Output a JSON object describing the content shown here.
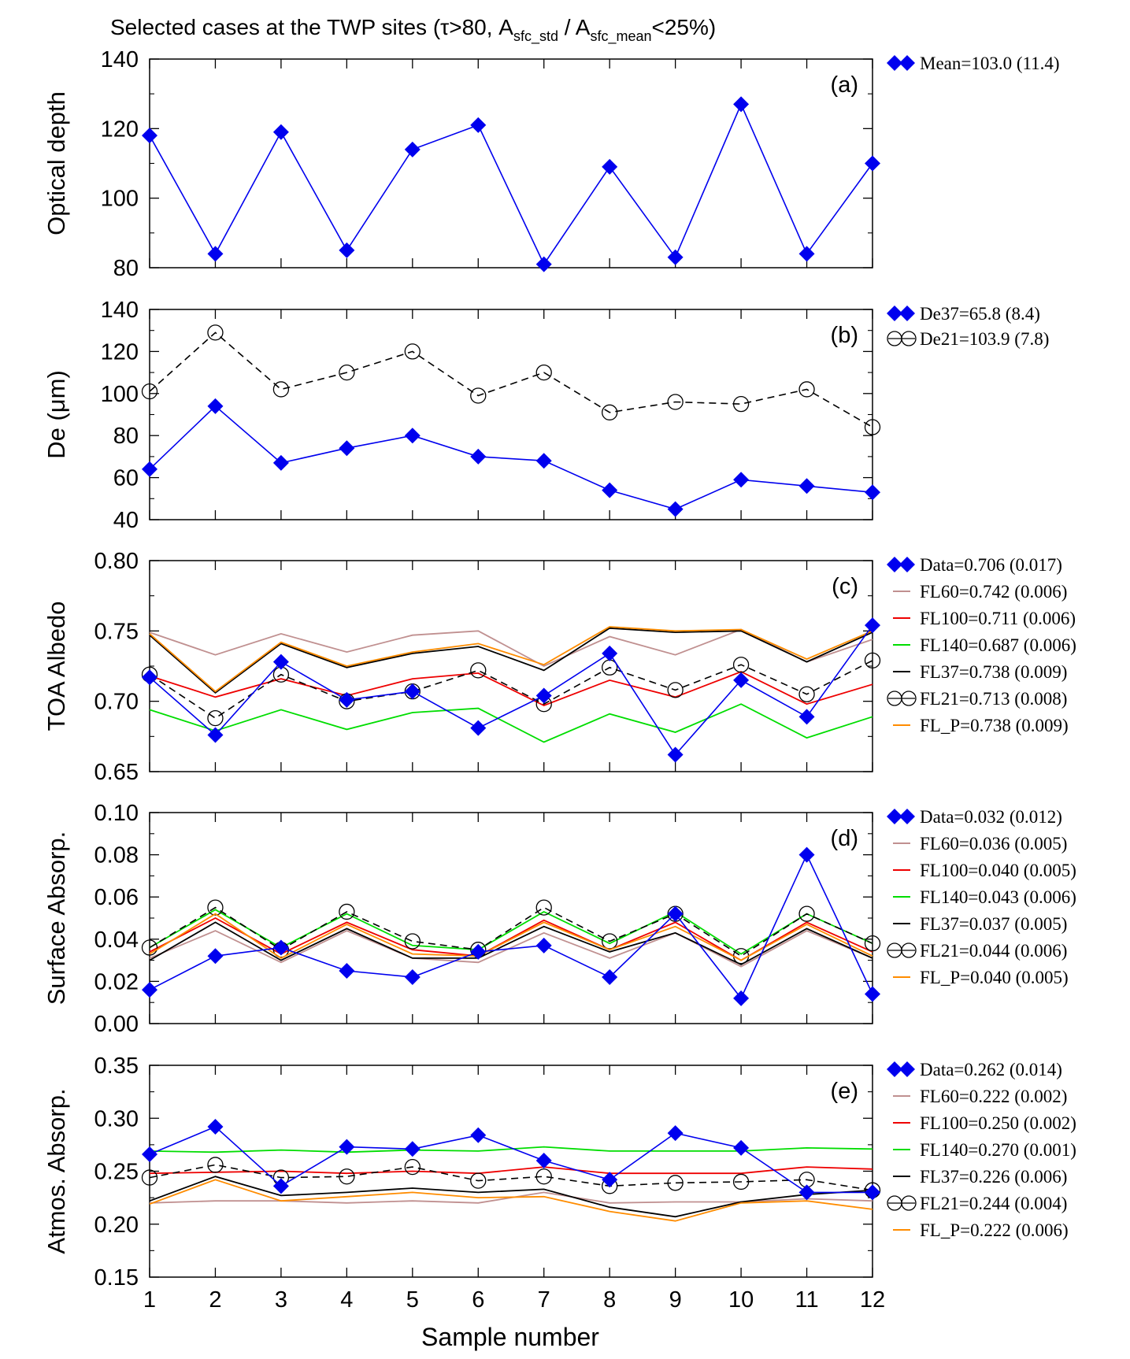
{
  "figure": {
    "title_parts": [
      "Selected cases at the TWP sites (τ>80, A",
      "sfc_std",
      " / A",
      "sfc_mean",
      "<25%)"
    ],
    "xlabel": "Sample number"
  },
  "colors": {
    "data": "#0000ee",
    "FL60": "#c09090",
    "FL100": "#ee0000",
    "FL140": "#00dd00",
    "FL37": "#000000",
    "FL21": "#000000",
    "FL_P": "#ff8c00"
  },
  "chart_data": [
    {
      "type": "line",
      "panel": "(a)",
      "ylabel": "Optical depth",
      "ylim": [
        80,
        140
      ],
      "yticks": [
        "80",
        "100",
        "120",
        "140"
      ],
      "x": [
        1,
        2,
        3,
        4,
        5,
        6,
        7,
        8,
        9,
        10,
        11,
        12
      ],
      "xtick_labels": [],
      "series": [
        {
          "name": "Mean=103.0 (11.4)",
          "style": "data",
          "values": [
            118,
            84,
            119,
            85,
            114,
            121,
            81,
            109,
            83,
            127,
            84,
            110
          ]
        }
      ]
    },
    {
      "type": "line",
      "panel": "(b)",
      "ylabel": "De (μm)",
      "ylim": [
        40,
        140
      ],
      "yticks": [
        "40",
        "60",
        "80",
        "100",
        "120",
        "140"
      ],
      "x": [
        1,
        2,
        3,
        4,
        5,
        6,
        7,
        8,
        9,
        10,
        11,
        12
      ],
      "xtick_labels": [],
      "series": [
        {
          "name": "De37=65.8 (8.4)",
          "style": "data",
          "values": [
            64,
            94,
            67,
            74,
            80,
            70,
            68,
            54,
            45,
            59,
            56,
            53
          ]
        },
        {
          "name": "De21=103.9 (7.8)",
          "style": "circle-dash",
          "values": [
            101,
            129,
            102,
            110,
            120,
            99,
            110,
            91,
            96,
            95,
            102,
            84
          ]
        }
      ]
    },
    {
      "type": "line",
      "panel": "(c)",
      "ylabel": "TOA Albedo",
      "ylim": [
        0.65,
        0.8
      ],
      "yticks": [
        "0.65",
        "0.70",
        "0.75",
        "0.80"
      ],
      "x": [
        1,
        2,
        3,
        4,
        5,
        6,
        7,
        8,
        9,
        10,
        11,
        12
      ],
      "xtick_labels": [],
      "series": [
        {
          "name": "Data=0.706 (0.017)",
          "style": "data",
          "values": [
            0.717,
            0.676,
            0.728,
            0.701,
            0.707,
            0.681,
            0.704,
            0.734,
            0.662,
            0.715,
            0.689,
            0.754
          ]
        },
        {
          "name": "FL60=0.742 (0.006)",
          "style": "FL60",
          "values": [
            0.749,
            0.733,
            0.748,
            0.735,
            0.747,
            0.75,
            0.725,
            0.746,
            0.733,
            0.751,
            0.728,
            0.744
          ]
        },
        {
          "name": "FL100=0.711 (0.006)",
          "style": "FL100",
          "values": [
            0.718,
            0.703,
            0.716,
            0.704,
            0.716,
            0.72,
            0.697,
            0.715,
            0.703,
            0.721,
            0.698,
            0.712
          ]
        },
        {
          "name": "FL140=0.687 (0.006)",
          "style": "FL140",
          "values": [
            0.694,
            0.679,
            0.694,
            0.68,
            0.692,
            0.695,
            0.671,
            0.691,
            0.678,
            0.698,
            0.674,
            0.689
          ]
        },
        {
          "name": "FL37=0.738 (0.009)",
          "style": "FL37",
          "values": [
            0.747,
            0.706,
            0.741,
            0.724,
            0.734,
            0.739,
            0.722,
            0.752,
            0.749,
            0.75,
            0.728,
            0.749
          ]
        },
        {
          "name": "FL21=0.713 (0.008)",
          "style": "FL21",
          "values": [
            0.719,
            0.688,
            0.719,
            0.7,
            0.707,
            0.722,
            0.698,
            0.724,
            0.708,
            0.726,
            0.705,
            0.729
          ]
        },
        {
          "name": "FL_P=0.738 (0.009)",
          "style": "FL_P",
          "values": [
            0.748,
            0.707,
            0.742,
            0.725,
            0.735,
            0.741,
            0.726,
            0.753,
            0.75,
            0.751,
            0.73,
            0.75
          ]
        }
      ]
    },
    {
      "type": "line",
      "panel": "(d)",
      "ylabel": "Surface Absorp.",
      "ylim": [
        0,
        0.1
      ],
      "yticks": [
        "0.00",
        "0.02",
        "0.04",
        "0.06",
        "0.08",
        "0.10"
      ],
      "x": [
        1,
        2,
        3,
        4,
        5,
        6,
        7,
        8,
        9,
        10,
        11,
        12
      ],
      "xtick_labels": [],
      "series": [
        {
          "name": "Data=0.032 (0.012)",
          "style": "data",
          "values": [
            0.016,
            0.032,
            0.036,
            0.025,
            0.022,
            0.034,
            0.037,
            0.022,
            0.052,
            0.012,
            0.08,
            0.014
          ]
        },
        {
          "name": "FL60=0.036 (0.005)",
          "style": "FL60",
          "values": [
            0.031,
            0.044,
            0.029,
            0.044,
            0.031,
            0.029,
            0.043,
            0.031,
            0.043,
            0.027,
            0.044,
            0.031
          ]
        },
        {
          "name": "FL100=0.040 (0.005)",
          "style": "FL100",
          "values": [
            0.034,
            0.05,
            0.033,
            0.048,
            0.035,
            0.032,
            0.049,
            0.035,
            0.048,
            0.03,
            0.048,
            0.034
          ]
        },
        {
          "name": "FL140=0.043 (0.006)",
          "style": "FL140",
          "values": [
            0.036,
            0.054,
            0.036,
            0.052,
            0.037,
            0.035,
            0.053,
            0.038,
            0.053,
            0.033,
            0.052,
            0.038
          ]
        },
        {
          "name": "FL37=0.037 (0.005)",
          "style": "FL37",
          "values": [
            0.03,
            0.048,
            0.03,
            0.045,
            0.031,
            0.031,
            0.046,
            0.034,
            0.043,
            0.028,
            0.045,
            0.031
          ]
        },
        {
          "name": "FL21=0.044 (0.006)",
          "style": "FL21",
          "values": [
            0.036,
            0.055,
            0.035,
            0.053,
            0.039,
            0.035,
            0.055,
            0.039,
            0.052,
            0.032,
            0.052,
            0.038
          ]
        },
        {
          "name": "FL_P=0.040 (0.005)",
          "style": "FL_P",
          "values": [
            0.033,
            0.052,
            0.031,
            0.047,
            0.033,
            0.032,
            0.048,
            0.035,
            0.046,
            0.03,
            0.047,
            0.032
          ]
        }
      ]
    },
    {
      "type": "line",
      "panel": "(e)",
      "ylabel": "Atmos. Absorp.",
      "ylim": [
        0.15,
        0.35
      ],
      "yticks": [
        "0.15",
        "0.20",
        "0.25",
        "0.30",
        "0.35"
      ],
      "x": [
        1,
        2,
        3,
        4,
        5,
        6,
        7,
        8,
        9,
        10,
        11,
        12
      ],
      "xtick_labels": [
        "1",
        "2",
        "3",
        "4",
        "5",
        "6",
        "7",
        "8",
        "9",
        "10",
        "11",
        "12"
      ],
      "series": [
        {
          "name": "Data=0.262 (0.014)",
          "style": "data",
          "values": [
            0.266,
            0.292,
            0.236,
            0.273,
            0.271,
            0.284,
            0.26,
            0.242,
            0.286,
            0.272,
            0.23,
            0.23
          ]
        },
        {
          "name": "FL60=0.222 (0.002)",
          "style": "FL60",
          "values": [
            0.22,
            0.222,
            0.222,
            0.22,
            0.222,
            0.22,
            0.23,
            0.22,
            0.221,
            0.221,
            0.224,
            0.222
          ]
        },
        {
          "name": "FL100=0.250 (0.002)",
          "style": "FL100",
          "values": [
            0.248,
            0.249,
            0.25,
            0.248,
            0.25,
            0.248,
            0.254,
            0.248,
            0.248,
            0.248,
            0.254,
            0.252
          ]
        },
        {
          "name": "FL140=0.270 (0.001)",
          "style": "FL140",
          "values": [
            0.269,
            0.268,
            0.27,
            0.268,
            0.27,
            0.269,
            0.273,
            0.269,
            0.269,
            0.269,
            0.272,
            0.271
          ]
        },
        {
          "name": "FL37=0.226 (0.006)",
          "style": "FL37",
          "values": [
            0.222,
            0.245,
            0.227,
            0.23,
            0.234,
            0.23,
            0.233,
            0.216,
            0.207,
            0.221,
            0.228,
            0.232
          ]
        },
        {
          "name": "FL21=0.244 (0.004)",
          "style": "FL21",
          "values": [
            0.244,
            0.256,
            0.244,
            0.245,
            0.254,
            0.241,
            0.245,
            0.236,
            0.239,
            0.24,
            0.242,
            0.232
          ]
        },
        {
          "name": "FL_P=0.222 (0.006)",
          "style": "FL_P",
          "values": [
            0.219,
            0.242,
            0.222,
            0.226,
            0.23,
            0.225,
            0.226,
            0.212,
            0.203,
            0.22,
            0.222,
            0.214
          ]
        }
      ]
    }
  ]
}
